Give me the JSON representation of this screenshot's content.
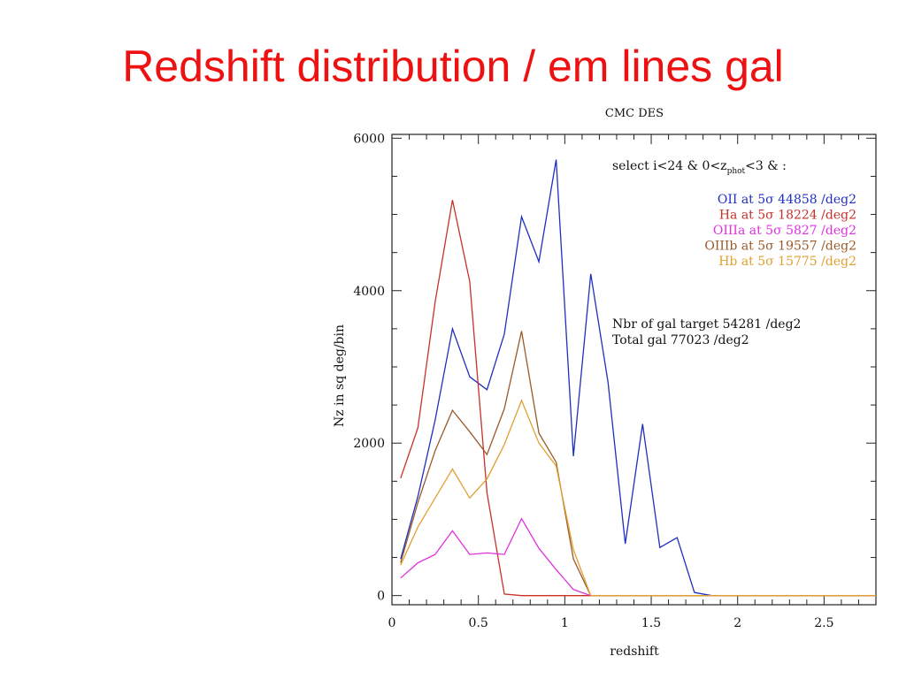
{
  "slide": {
    "title": "Redshift distribution / em lines gal"
  },
  "chart_data": {
    "type": "line",
    "title": "CMC DES",
    "xlabel": "redshift",
    "ylabel": "Nz in sq deg/bin",
    "xlim": [
      0,
      2.8
    ],
    "ylim": [
      -120,
      6050
    ],
    "x_ticks": [
      "0",
      "0.5",
      "1",
      "1.5",
      "2",
      "2.5"
    ],
    "y_ticks": [
      "0",
      "2000",
      "4000",
      "6000"
    ],
    "selection": {
      "prefix": "select i<24 & 0<z",
      "subscript": "phot",
      "suffix": "<3 & :"
    },
    "legend_position": "top-right",
    "x": [
      0.05,
      0.15,
      0.25,
      0.35,
      0.45,
      0.55,
      0.65,
      0.75,
      0.85,
      0.95,
      1.05,
      1.15,
      1.25,
      1.35,
      1.45,
      1.55,
      1.65,
      1.75,
      1.85,
      1.95,
      2.05,
      2.15,
      2.25,
      2.35,
      2.45,
      2.55,
      2.65,
      2.75,
      2.8
    ],
    "series": [
      {
        "name": "OII at 5σ 44858 /deg2",
        "color": "#1f2fbf",
        "values": [
          480,
          1300,
          2300,
          3500,
          2870,
          2700,
          3430,
          4970,
          4380,
          5720,
          1830,
          4220,
          2800,
          680,
          2250,
          630,
          760,
          40,
          0,
          0,
          0,
          0,
          0,
          0,
          0,
          0,
          0,
          0,
          0
        ]
      },
      {
        "name": "Ha at 5σ 18224 /deg2",
        "color": "#c8302a",
        "values": [
          1540,
          2200,
          3850,
          5190,
          4120,
          1350,
          20,
          0,
          0,
          0,
          0,
          0,
          0,
          0,
          0,
          0,
          0,
          0,
          0,
          0,
          0,
          0,
          0,
          0,
          0,
          0,
          0,
          0,
          0
        ]
      },
      {
        "name": "OIIIa at 5σ 5827 /deg2",
        "color": "#e030e0",
        "values": [
          230,
          430,
          540,
          850,
          540,
          560,
          540,
          1010,
          620,
          340,
          80,
          0,
          0,
          0,
          0,
          0,
          0,
          0,
          0,
          0,
          0,
          0,
          0,
          0,
          0,
          0,
          0,
          0,
          0
        ]
      },
      {
        "name": "OIIIb at 5σ 19557 /deg2",
        "color": "#9a5a2a",
        "values": [
          430,
          1220,
          1900,
          2430,
          2150,
          1850,
          2450,
          3470,
          2130,
          1750,
          480,
          0,
          0,
          0,
          0,
          0,
          0,
          0,
          0,
          0,
          0,
          0,
          0,
          0,
          0,
          0,
          0,
          0,
          0
        ]
      },
      {
        "name": "Hb at 5σ 15775 /deg2",
        "color": "#e0a030",
        "values": [
          400,
          900,
          1280,
          1660,
          1280,
          1530,
          1980,
          2560,
          2000,
          1700,
          600,
          0,
          0,
          0,
          0,
          0,
          0,
          0,
          0,
          0,
          0,
          0,
          0,
          0,
          0,
          0,
          0,
          0,
          0
        ]
      }
    ],
    "info": [
      "Nbr of gal target 54281 /deg2",
      "Total gal 77023 /deg2"
    ]
  }
}
